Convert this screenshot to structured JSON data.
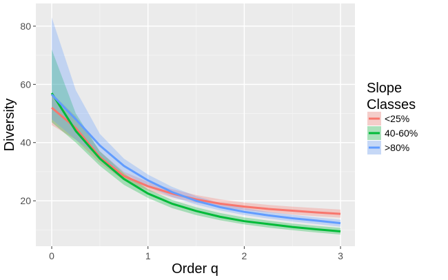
{
  "chart_data": {
    "type": "line",
    "x_label": "Order q",
    "y_label": "Diversity",
    "legend_title": "Slope Classes",
    "x": [
      0,
      0.25,
      0.5,
      0.75,
      1,
      1.25,
      1.5,
      1.75,
      2,
      2.25,
      2.5,
      2.75,
      3
    ],
    "xlim": [
      -0.165,
      3.15
    ],
    "xticks": [
      0,
      1,
      2,
      3
    ],
    "ylim": [
      4.4,
      87.8
    ],
    "yticks": [
      20,
      40,
      60,
      80
    ],
    "grid": true,
    "series": [
      {
        "name": "<25%",
        "color": "#F8766D",
        "values": [
          52,
          45,
          35,
          28.5,
          25,
          22.5,
          20.5,
          19,
          18,
          17.2,
          16.6,
          16,
          15.5
        ],
        "lower": [
          46,
          41,
          33,
          27,
          23.5,
          21.2,
          19.3,
          17.9,
          16.8,
          16,
          15.3,
          14.7,
          14.2
        ],
        "upper": [
          57,
          49,
          37,
          30,
          26.5,
          24,
          22,
          20.5,
          19.4,
          18.6,
          18,
          17.5,
          17
        ]
      },
      {
        "name": "40-60%",
        "color": "#00BA38",
        "values": [
          57,
          44,
          34.5,
          27.5,
          22.5,
          19,
          16.5,
          14.5,
          13,
          12,
          11,
          10.2,
          9.5
        ],
        "lower": [
          47,
          40,
          32,
          25.5,
          21,
          17.5,
          15.1,
          13.3,
          11.9,
          10.8,
          9.9,
          9.1,
          8.4
        ],
        "upper": [
          72,
          50,
          37,
          29.5,
          24,
          20.3,
          17.8,
          15.8,
          14.3,
          13.2,
          12.2,
          11.4,
          10.7
        ]
      },
      {
        "name": ">80%",
        "color": "#619CFF",
        "values": [
          56.5,
          48,
          39,
          32,
          27,
          23,
          20,
          17.8,
          16.2,
          15,
          14,
          13.2,
          12.3
        ],
        "lower": [
          48,
          41,
          35,
          29.5,
          24.8,
          21.3,
          18.7,
          16.7,
          15.1,
          13.9,
          12.9,
          12,
          11.1
        ],
        "upper": [
          83,
          58,
          43,
          34.5,
          29,
          24.8,
          21.6,
          19.2,
          17.5,
          16.2,
          15.2,
          14.3,
          13.5
        ]
      }
    ]
  }
}
